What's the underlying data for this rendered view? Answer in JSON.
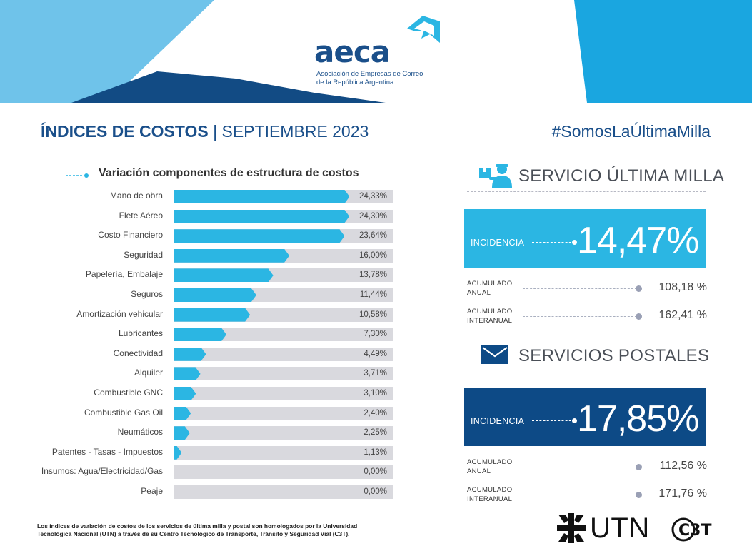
{
  "brand": {
    "logo_text": "aeca",
    "logo_subtitle_line1": "Asociación de Empresas de Correo",
    "logo_subtitle_line2": "de la República Argentina"
  },
  "header": {
    "title_bold": "ÍNDICES DE COSTOS",
    "title_separator": "|",
    "title_period": "SEPTIEMBRE 2023",
    "hashtag": "#SomosLaÚltimaMilla"
  },
  "chart_data": {
    "type": "bar",
    "orientation": "horizontal",
    "title": "Variación componentes de estructura de costos",
    "categories": [
      "Mano de obra",
      "Flete Aéreo",
      "Costo Financiero",
      "Seguridad",
      "Papelería, Embalaje",
      "Seguros",
      "Amortización vehicular",
      "Lubricantes",
      "Conectividad",
      "Alquiler",
      "Combustible GNC",
      "Combustible Gas Oil",
      "Neumáticos",
      "Patentes - Tasas - Impuestos",
      "Insumos: Agua/Electricidad/Gas",
      "Peaje"
    ],
    "values": [
      24.33,
      24.3,
      23.64,
      16.0,
      13.78,
      11.44,
      10.58,
      7.3,
      4.49,
      3.71,
      3.1,
      2.4,
      2.25,
      1.13,
      0.0,
      0.0
    ],
    "value_labels": [
      "24,33%",
      "24,30%",
      "23,64%",
      "16,00%",
      "13,78%",
      "11,44%",
      "10,58%",
      "7,30%",
      "4,49%",
      "3,71%",
      "3,10%",
      "2,40%",
      "2,25%",
      "1,13%",
      "0,00%",
      "0,00%"
    ],
    "bar_color": "#2bb6e3",
    "track_color": "#d9d9de"
  },
  "ultima_milla": {
    "title": "SERVICIO ÚLTIMA MILLA",
    "incidence_label": "INCIDENCIA",
    "incidence_value": "14,47%",
    "color": "#2bb6e3",
    "acumulado_anual_label_1": "ACUMULADO",
    "acumulado_anual_label_2": "ANUAL",
    "acumulado_anual_value": "108,18 %",
    "acumulado_interanual_label_1": "ACUMULADO",
    "acumulado_interanual_label_2": "INTERANUAL",
    "acumulado_interanual_value": "162,41 %"
  },
  "postales": {
    "title": "SERVICIOS POSTALES",
    "incidence_label": "INCIDENCIA",
    "incidence_value": "17,85%",
    "color": "#0d4a86",
    "acumulado_anual_label_1": "ACUMULADO",
    "acumulado_anual_label_2": "ANUAL",
    "acumulado_anual_value": "112,56 %",
    "acumulado_interanual_label_1": "ACUMULADO",
    "acumulado_interanual_label_2": "INTERANUAL",
    "acumulado_interanual_value": "171,76 %"
  },
  "footer": {
    "note_line1": "Los índices de variación de costos de los servicios de última milla y postal son homologados por la Universidad",
    "note_line2": "Tecnológica Nacional (UTN) a través de su Centro Tecnológico de Transporte, Tránsito y Seguridad Vial (C3T).",
    "utn_text": "UTN",
    "c3t_text": "C3T"
  }
}
